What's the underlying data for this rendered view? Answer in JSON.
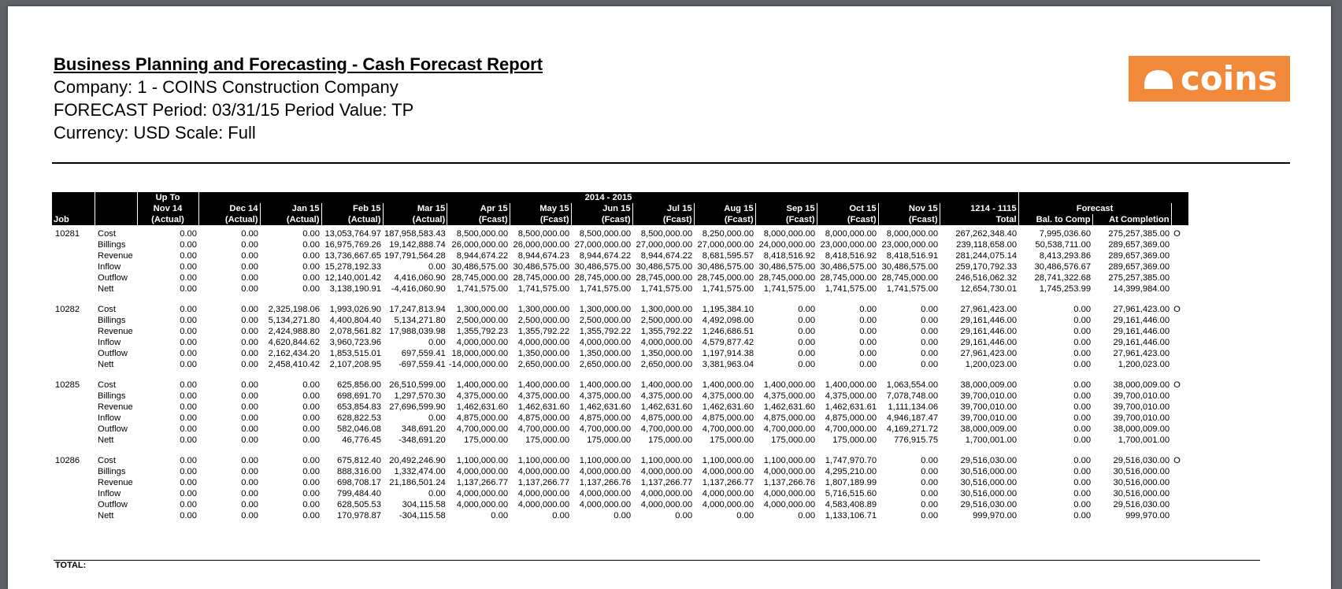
{
  "header": {
    "title": "Business Planning and Forecasting - Cash Forecast Report",
    "company": "Company: 1 - COINS Construction Company",
    "period": "FORECAST Period: 03/31/15 Period Value: TP",
    "currency": "Currency: USD Scale: Full"
  },
  "logo": {
    "text": "coins",
    "brand_color": "#f08a3a",
    "icon": "hardhat-icon"
  },
  "table_header": {
    "up_to": "Up To",
    "span_label": "2014 - 2015",
    "forecast_label": "Forecast",
    "job": "Job",
    "columns": [
      {
        "month": "Nov 14",
        "kind": "(Actual)"
      },
      {
        "month": "Dec 14",
        "kind": "(Actual)"
      },
      {
        "month": "Jan 15",
        "kind": "(Actual)"
      },
      {
        "month": "Feb 15",
        "kind": "(Actual)"
      },
      {
        "month": "Mar 15",
        "kind": "(Actual)"
      },
      {
        "month": "Apr 15",
        "kind": "(Fcast)"
      },
      {
        "month": "May 15",
        "kind": "(Fcast)"
      },
      {
        "month": "Jun 15",
        "kind": "(Fcast)"
      },
      {
        "month": "Jul 15",
        "kind": "(Fcast)"
      },
      {
        "month": "Aug 15",
        "kind": "(Fcast)"
      },
      {
        "month": "Sep 15",
        "kind": "(Fcast)"
      },
      {
        "month": "Oct 15",
        "kind": "(Fcast)"
      },
      {
        "month": "Nov 15",
        "kind": "(Fcast)"
      },
      {
        "month": "1214 - 1115",
        "kind": "Total"
      },
      {
        "month": "",
        "kind": "Bal. to Comp"
      },
      {
        "month": "",
        "kind": "At Completion"
      }
    ]
  },
  "jobs": [
    {
      "job": "10281",
      "rows": [
        {
          "type": "Cost",
          "values": [
            "0.00",
            "0.00",
            "0.00",
            "13,053,764.97",
            "187,958,583.43",
            "8,500,000.00",
            "8,500,000.00",
            "8,500,000.00",
            "8,500,000.00",
            "8,250,000.00",
            "8,000,000.00",
            "8,000,000.00",
            "8,000,000.00",
            "267,262,348.40",
            "7,995,036.60",
            "275,257,385.00"
          ],
          "mark": "O"
        },
        {
          "type": "Billings",
          "values": [
            "0.00",
            "0.00",
            "0.00",
            "16,975,769.26",
            "19,142,888.74",
            "26,000,000.00",
            "26,000,000.00",
            "27,000,000.00",
            "27,000,000.00",
            "27,000,000.00",
            "24,000,000.00",
            "23,000,000.00",
            "23,000,000.00",
            "239,118,658.00",
            "50,538,711.00",
            "289,657,369.00"
          ],
          "mark": ""
        },
        {
          "type": "Revenue",
          "values": [
            "0.00",
            "0.00",
            "0.00",
            "13,736,667.65",
            "197,791,564.28",
            "8,944,674.22",
            "8,944,674.23",
            "8,944,674.22",
            "8,944,674.22",
            "8,681,595.57",
            "8,418,516.92",
            "8,418,516.92",
            "8,418,516.91",
            "281,244,075.14",
            "8,413,293.86",
            "289,657,369.00"
          ],
          "mark": ""
        },
        {
          "type": "Inflow",
          "values": [
            "0.00",
            "0.00",
            "0.00",
            "15,278,192.33",
            "0.00",
            "30,486,575.00",
            "30,486,575.00",
            "30,486,575.00",
            "30,486,575.00",
            "30,486,575.00",
            "30,486,575.00",
            "30,486,575.00",
            "30,486,575.00",
            "259,170,792.33",
            "30,486,576.67",
            "289,657,369.00"
          ],
          "mark": ""
        },
        {
          "type": "Outflow",
          "values": [
            "0.00",
            "0.00",
            "0.00",
            "12,140,001.42",
            "4,416,060.90",
            "28,745,000.00",
            "28,745,000.00",
            "28,745,000.00",
            "28,745,000.00",
            "28,745,000.00",
            "28,745,000.00",
            "28,745,000.00",
            "28,745,000.00",
            "246,516,062.32",
            "28,741,322.68",
            "275,257,385.00"
          ],
          "mark": ""
        },
        {
          "type": "Nett",
          "values": [
            "0.00",
            "0.00",
            "0.00",
            "3,138,190.91",
            "-4,416,060.90",
            "1,741,575.00",
            "1,741,575.00",
            "1,741,575.00",
            "1,741,575.00",
            "1,741,575.00",
            "1,741,575.00",
            "1,741,575.00",
            "1,741,575.00",
            "12,654,730.01",
            "1,745,253.99",
            "14,399,984.00"
          ],
          "mark": ""
        }
      ]
    },
    {
      "job": "10282",
      "rows": [
        {
          "type": "Cost",
          "values": [
            "0.00",
            "0.00",
            "2,325,198.06",
            "1,993,026.90",
            "17,247,813.94",
            "1,300,000.00",
            "1,300,000.00",
            "1,300,000.00",
            "1,300,000.00",
            "1,195,384.10",
            "0.00",
            "0.00",
            "0.00",
            "27,961,423.00",
            "0.00",
            "27,961,423.00"
          ],
          "mark": "O"
        },
        {
          "type": "Billings",
          "values": [
            "0.00",
            "0.00",
            "5,134,271.80",
            "4,400,804.40",
            "5,134,271.80",
            "2,500,000.00",
            "2,500,000.00",
            "2,500,000.00",
            "2,500,000.00",
            "4,492,098.00",
            "0.00",
            "0.00",
            "0.00",
            "29,161,446.00",
            "0.00",
            "29,161,446.00"
          ],
          "mark": ""
        },
        {
          "type": "Revenue",
          "values": [
            "0.00",
            "0.00",
            "2,424,988.80",
            "2,078,561.82",
            "17,988,039.98",
            "1,355,792.23",
            "1,355,792.22",
            "1,355,792.22",
            "1,355,792.22",
            "1,246,686.51",
            "0.00",
            "0.00",
            "0.00",
            "29,161,446.00",
            "0.00",
            "29,161,446.00"
          ],
          "mark": ""
        },
        {
          "type": "Inflow",
          "values": [
            "0.00",
            "0.00",
            "4,620,844.62",
            "3,960,723.96",
            "0.00",
            "4,000,000.00",
            "4,000,000.00",
            "4,000,000.00",
            "4,000,000.00",
            "4,579,877.42",
            "0.00",
            "0.00",
            "0.00",
            "29,161,446.00",
            "0.00",
            "29,161,446.00"
          ],
          "mark": ""
        },
        {
          "type": "Outflow",
          "values": [
            "0.00",
            "0.00",
            "2,162,434.20",
            "1,853,515.01",
            "697,559.41",
            "18,000,000.00",
            "1,350,000.00",
            "1,350,000.00",
            "1,350,000.00",
            "1,197,914.38",
            "0.00",
            "0.00",
            "0.00",
            "27,961,423.00",
            "0.00",
            "27,961,423.00"
          ],
          "mark": ""
        },
        {
          "type": "Nett",
          "values": [
            "0.00",
            "0.00",
            "2,458,410.42",
            "2,107,208.95",
            "-697,559.41",
            "-14,000,000.00",
            "2,650,000.00",
            "2,650,000.00",
            "2,650,000.00",
            "3,381,963.04",
            "0.00",
            "0.00",
            "0.00",
            "1,200,023.00",
            "0.00",
            "1,200,023.00"
          ],
          "mark": ""
        }
      ]
    },
    {
      "job": "10285",
      "rows": [
        {
          "type": "Cost",
          "values": [
            "0.00",
            "0.00",
            "0.00",
            "625,856.00",
            "26,510,599.00",
            "1,400,000.00",
            "1,400,000.00",
            "1,400,000.00",
            "1,400,000.00",
            "1,400,000.00",
            "1,400,000.00",
            "1,400,000.00",
            "1,063,554.00",
            "38,000,009.00",
            "0.00",
            "38,000,009.00"
          ],
          "mark": "O"
        },
        {
          "type": "Billings",
          "values": [
            "0.00",
            "0.00",
            "0.00",
            "698,691.70",
            "1,297,570.30",
            "4,375,000.00",
            "4,375,000.00",
            "4,375,000.00",
            "4,375,000.00",
            "4,375,000.00",
            "4,375,000.00",
            "4,375,000.00",
            "7,078,748.00",
            "39,700,010.00",
            "0.00",
            "39,700,010.00"
          ],
          "mark": ""
        },
        {
          "type": "Revenue",
          "values": [
            "0.00",
            "0.00",
            "0.00",
            "653,854.83",
            "27,696,599.90",
            "1,462,631.60",
            "1,462,631.60",
            "1,462,631.60",
            "1,462,631.60",
            "1,462,631.60",
            "1,462,631.60",
            "1,462,631.61",
            "1,111,134.06",
            "39,700,010.00",
            "0.00",
            "39,700,010.00"
          ],
          "mark": ""
        },
        {
          "type": "Inflow",
          "values": [
            "0.00",
            "0.00",
            "0.00",
            "628,822.53",
            "0.00",
            "4,875,000.00",
            "4,875,000.00",
            "4,875,000.00",
            "4,875,000.00",
            "4,875,000.00",
            "4,875,000.00",
            "4,875,000.00",
            "4,946,187.47",
            "39,700,010.00",
            "0.00",
            "39,700,010.00"
          ],
          "mark": ""
        },
        {
          "type": "Outflow",
          "values": [
            "0.00",
            "0.00",
            "0.00",
            "582,046.08",
            "348,691.20",
            "4,700,000.00",
            "4,700,000.00",
            "4,700,000.00",
            "4,700,000.00",
            "4,700,000.00",
            "4,700,000.00",
            "4,700,000.00",
            "4,169,271.72",
            "38,000,009.00",
            "0.00",
            "38,000,009.00"
          ],
          "mark": ""
        },
        {
          "type": "Nett",
          "values": [
            "0.00",
            "0.00",
            "0.00",
            "46,776.45",
            "-348,691.20",
            "175,000.00",
            "175,000.00",
            "175,000.00",
            "175,000.00",
            "175,000.00",
            "175,000.00",
            "175,000.00",
            "776,915.75",
            "1,700,001.00",
            "0.00",
            "1,700,001.00"
          ],
          "mark": ""
        }
      ]
    },
    {
      "job": "10286",
      "rows": [
        {
          "type": "Cost",
          "values": [
            "0.00",
            "0.00",
            "0.00",
            "675,812.40",
            "20,492,246.90",
            "1,100,000.00",
            "1,100,000.00",
            "1,100,000.00",
            "1,100,000.00",
            "1,100,000.00",
            "1,100,000.00",
            "1,747,970.70",
            "0.00",
            "29,516,030.00",
            "0.00",
            "29,516,030.00"
          ],
          "mark": "O"
        },
        {
          "type": "Billings",
          "values": [
            "0.00",
            "0.00",
            "0.00",
            "888,316.00",
            "1,332,474.00",
            "4,000,000.00",
            "4,000,000.00",
            "4,000,000.00",
            "4,000,000.00",
            "4,000,000.00",
            "4,000,000.00",
            "4,295,210.00",
            "0.00",
            "30,516,000.00",
            "0.00",
            "30,516,000.00"
          ],
          "mark": ""
        },
        {
          "type": "Revenue",
          "values": [
            "0.00",
            "0.00",
            "0.00",
            "698,708.17",
            "21,186,501.24",
            "1,137,266.77",
            "1,137,266.77",
            "1,137,266.76",
            "1,137,266.77",
            "1,137,266.77",
            "1,137,266.76",
            "1,807,189.99",
            "0.00",
            "30,516,000.00",
            "0.00",
            "30,516,000.00"
          ],
          "mark": ""
        },
        {
          "type": "Inflow",
          "values": [
            "0.00",
            "0.00",
            "0.00",
            "799,484.40",
            "0.00",
            "4,000,000.00",
            "4,000,000.00",
            "4,000,000.00",
            "4,000,000.00",
            "4,000,000.00",
            "4,000,000.00",
            "5,716,515.60",
            "0.00",
            "30,516,000.00",
            "0.00",
            "30,516,000.00"
          ],
          "mark": ""
        },
        {
          "type": "Outflow",
          "values": [
            "0.00",
            "0.00",
            "0.00",
            "628,505.53",
            "304,115.58",
            "4,000,000.00",
            "4,000,000.00",
            "4,000,000.00",
            "4,000,000.00",
            "4,000,000.00",
            "4,000,000.00",
            "4,583,408.89",
            "0.00",
            "29,516,030.00",
            "0.00",
            "29,516,030.00"
          ],
          "mark": ""
        },
        {
          "type": "Nett",
          "values": [
            "0.00",
            "0.00",
            "0.00",
            "170,978.87",
            "-304,115.58",
            "0.00",
            "0.00",
            "0.00",
            "0.00",
            "0.00",
            "0.00",
            "1,133,106.71",
            "0.00",
            "999,970.00",
            "0.00",
            "999,970.00"
          ],
          "mark": ""
        }
      ]
    }
  ],
  "footer": {
    "total_label": "TOTAL:"
  }
}
